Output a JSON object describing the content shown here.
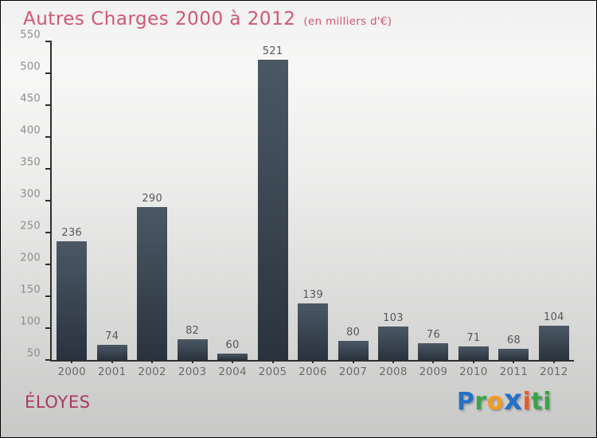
{
  "header": {
    "title": "Autres Charges 2000 à 2012",
    "subtitle": "(en milliers d'€)",
    "title_color": "#d25572"
  },
  "chart_data": {
    "type": "bar",
    "title": "Autres Charges 2000 à 2012",
    "subtitle": "(en milliers d'€)",
    "categories": [
      "2000",
      "2001",
      "2002",
      "2003",
      "2004",
      "2005",
      "2006",
      "2007",
      "2008",
      "2009",
      "2010",
      "2011",
      "2012"
    ],
    "values": [
      236,
      74,
      290,
      82,
      60,
      521,
      139,
      80,
      103,
      76,
      71,
      68,
      104
    ],
    "xlabel": "",
    "ylabel": "",
    "ylim": [
      50,
      550
    ],
    "ytick_step": 50,
    "grid": false,
    "legend_position": "none",
    "value_labels_shown": true,
    "bar_gradient": [
      "#4b5864",
      "#2a333d"
    ],
    "axis_color": "#2e2e2e",
    "tick_label_color": "#8d8d8d",
    "category_label_color": "#6a6a6a",
    "value_label_color": "#575757"
  },
  "footer": {
    "company": "ÉLOYES",
    "company_color": "#a93a63",
    "logo_letters": [
      {
        "char": "P",
        "color": "#2471c6"
      },
      {
        "char": "r",
        "color": "#3aa24a"
      },
      {
        "char": "o",
        "color": "#f49a1c"
      },
      {
        "char": "x",
        "color": "#2471c6",
        "emphasis": true
      },
      {
        "char": "i",
        "color": "#e85a25"
      },
      {
        "char": "t",
        "color": "#3aa24a"
      },
      {
        "char": "i",
        "color": "#3aa24a"
      }
    ]
  }
}
